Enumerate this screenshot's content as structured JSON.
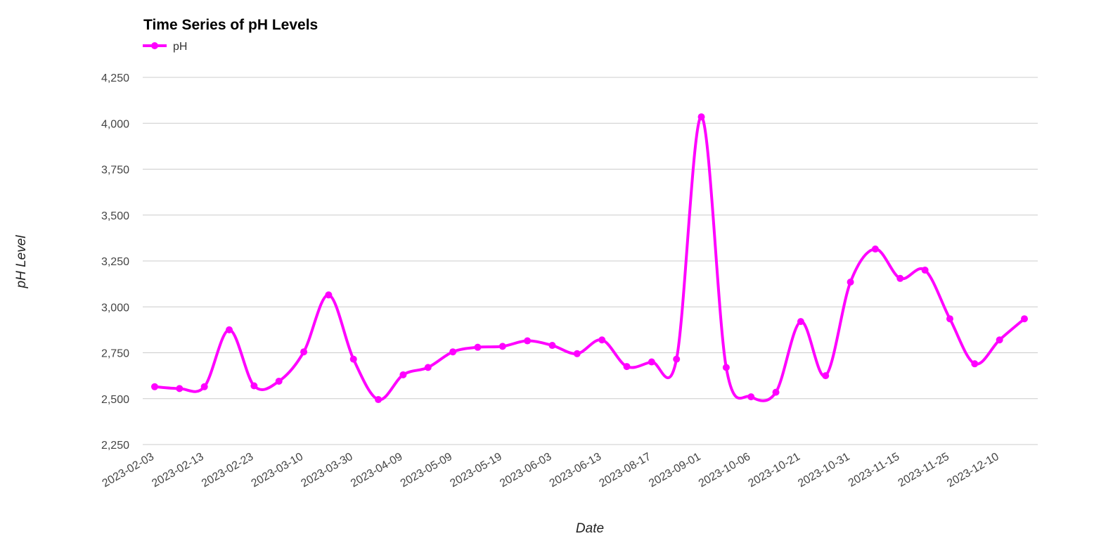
{
  "chart_data": {
    "type": "line",
    "title": "Time Series of pH Levels",
    "xlabel": "Date",
    "ylabel": "pH Level",
    "ylim": [
      2250,
      4250
    ],
    "yticks": [
      2250,
      2500,
      2750,
      3000,
      3250,
      3500,
      3750,
      4000,
      4250
    ],
    "ytick_labels": [
      "2,250",
      "2,500",
      "2,750",
      "3,000",
      "3,250",
      "3,500",
      "3,750",
      "4,000",
      "4,250"
    ],
    "xtick_labels": [
      "2023-02-03",
      "2023-02-13",
      "2023-02-23",
      "2023-03-10",
      "2023-03-30",
      "2023-04-09",
      "2023-05-09",
      "2023-05-19",
      "2023-06-03",
      "2023-06-13",
      "2023-08-17",
      "2023-09-01",
      "2023-10-06",
      "2023-10-21",
      "2023-10-31",
      "2023-11-15",
      "2023-11-25",
      "2023-12-10"
    ],
    "grid": true,
    "legend_position": "top-left",
    "series": [
      {
        "name": "pH",
        "color": "#ff00ff",
        "values": [
          2565,
          2555,
          2565,
          2875,
          2570,
          2595,
          2755,
          3065,
          2715,
          2495,
          2630,
          2670,
          2755,
          2780,
          2785,
          2815,
          2790,
          2745,
          2820,
          2675,
          2700,
          2715,
          4035,
          2670,
          2510,
          2535,
          2920,
          2625,
          3135,
          3315,
          3155,
          3200,
          2935,
          2690,
          2820,
          2935
        ]
      }
    ]
  }
}
